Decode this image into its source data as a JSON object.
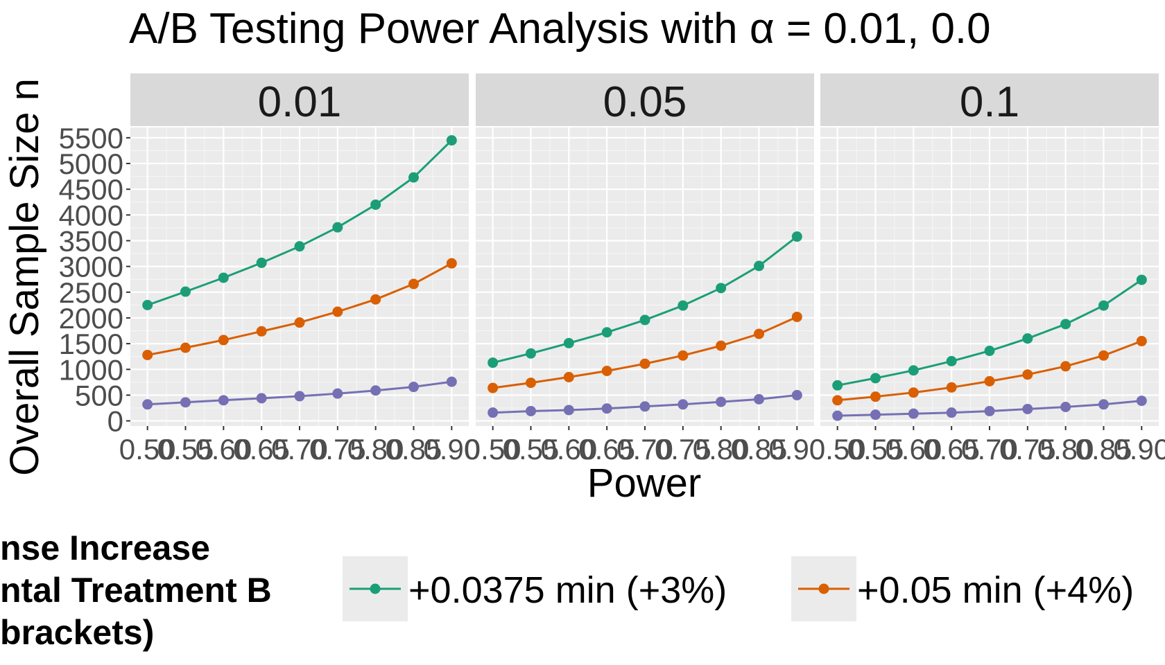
{
  "chart_data": {
    "type": "line",
    "title": "A/B Testing Power Analysis with α = 0.01, 0.0",
    "xlabel": "Power",
    "ylabel": "Overall Sample Size n",
    "ylim": [
      -100,
      5700
    ],
    "yticks": [
      0,
      500,
      1000,
      1500,
      2000,
      2500,
      3000,
      3500,
      4000,
      4500,
      5000,
      5500
    ],
    "x": [
      0.5,
      0.55,
      0.6,
      0.65,
      0.7,
      0.75,
      0.8,
      0.85,
      0.9
    ],
    "xtick_labels": [
      "0.50",
      "0.55",
      "0.60",
      "0.65",
      "0.70",
      "0.75",
      "0.80",
      "0.85",
      "0.90"
    ],
    "grid": true,
    "legend": {
      "position": "bottom",
      "title_lines": [
        "nse Increase",
        "ntal Treatment B",
        "brackets)"
      ],
      "entries": [
        {
          "label": "+0.0375 min (+3%)",
          "color": "#1b9e77"
        },
        {
          "label": "+0.05 min (+4%)",
          "color": "#d95f02"
        }
      ]
    },
    "panels": [
      {
        "label": "0.01",
        "series": [
          {
            "color": "#1b9e77",
            "values": [
              2250,
              2510,
              2780,
              3070,
              3390,
              3760,
              4200,
              4730,
              5450
            ]
          },
          {
            "color": "#d95f02",
            "values": [
              1280,
              1420,
              1570,
              1740,
              1910,
              2120,
              2360,
              2660,
              3060
            ]
          },
          {
            "color": "#7570b3",
            "values": [
              320,
              360,
              400,
              440,
              480,
              530,
              590,
              660,
              760
            ]
          }
        ]
      },
      {
        "label": "0.05",
        "series": [
          {
            "color": "#1b9e77",
            "values": [
              1130,
              1310,
              1510,
              1720,
              1960,
              2240,
              2580,
              3010,
              3580
            ]
          },
          {
            "color": "#d95f02",
            "values": [
              640,
              740,
              850,
              970,
              1110,
              1270,
              1460,
              1690,
              2020
            ]
          },
          {
            "color": "#7570b3",
            "values": [
              160,
              190,
              210,
              240,
              280,
              320,
              370,
              420,
              500
            ]
          }
        ]
      },
      {
        "label": "0.1",
        "series": [
          {
            "color": "#1b9e77",
            "values": [
              690,
              830,
              980,
              1160,
              1360,
              1600,
              1880,
              2240,
              2740
            ]
          },
          {
            "color": "#d95f02",
            "values": [
              400,
              470,
              550,
              650,
              770,
              900,
              1060,
              1270,
              1550
            ]
          },
          {
            "color": "#7570b3",
            "values": [
              100,
              120,
              140,
              160,
              190,
              230,
              270,
              320,
              390
            ]
          }
        ]
      }
    ]
  }
}
